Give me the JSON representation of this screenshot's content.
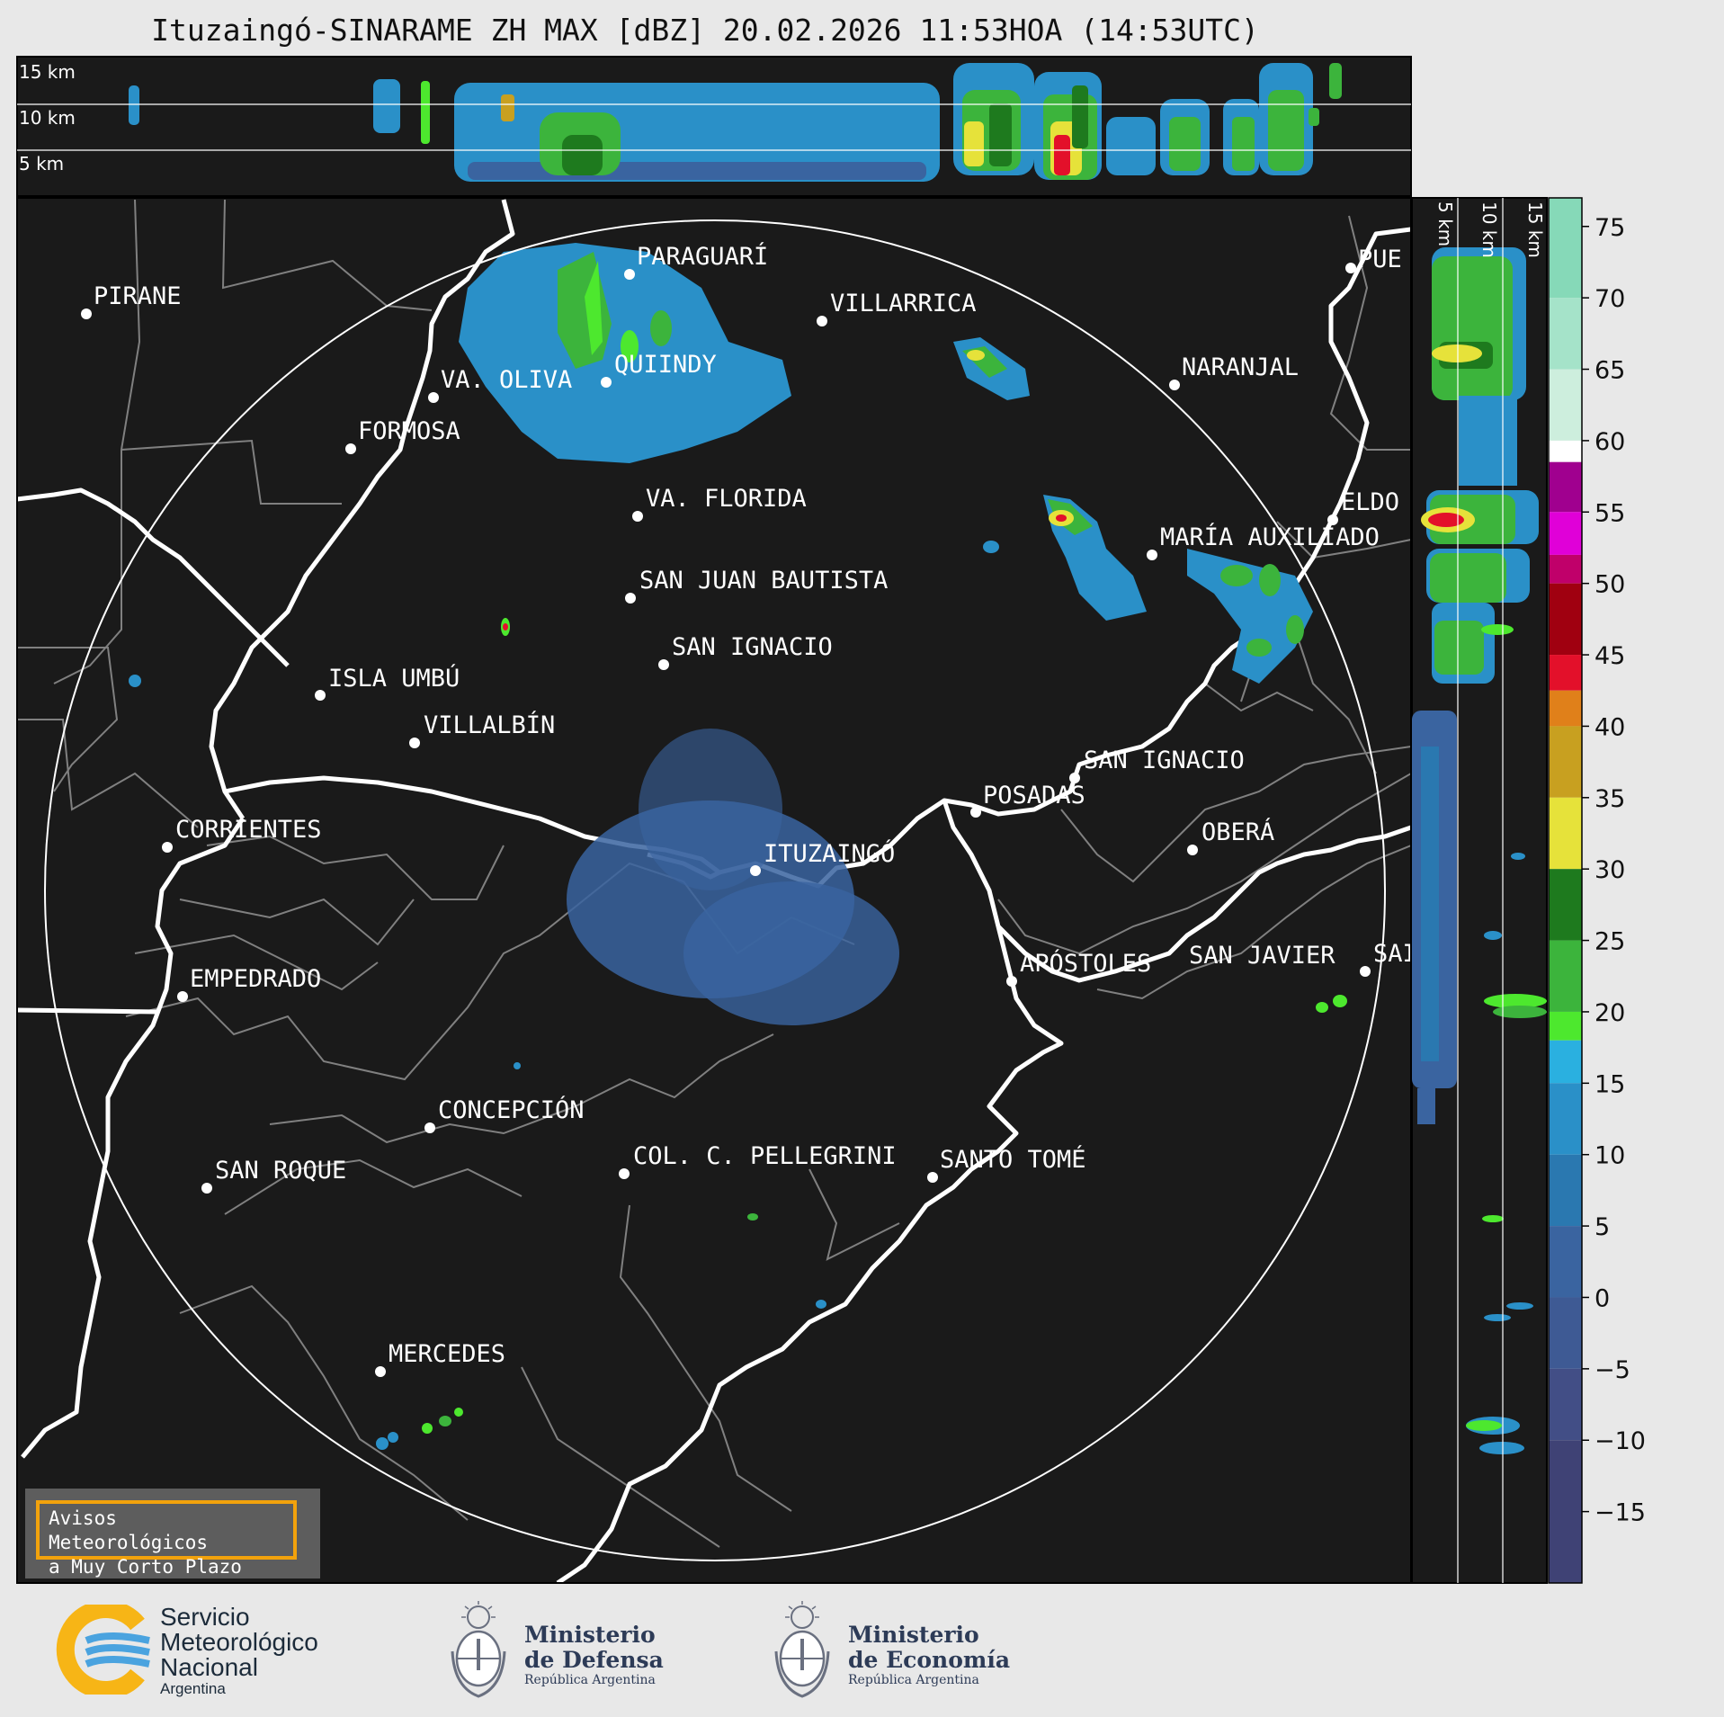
{
  "title": "Ituzaingó-SINARAME ZH MAX [dBZ] 20.02.2026 11:53HOA (14:53UTC)",
  "top_panel": {
    "height_labels": [
      "15 km",
      "10 km",
      "5 km"
    ]
  },
  "side_panel": {
    "height_labels": [
      "5 km",
      "10 km",
      "15 km"
    ]
  },
  "colorbar": {
    "ticks": [
      "75",
      "70",
      "65",
      "60",
      "55",
      "50",
      "45",
      "40",
      "35",
      "30",
      "25",
      "20",
      "15",
      "10",
      "5",
      "0",
      "−5",
      "−10",
      "−15"
    ],
    "range": [
      -20,
      77
    ],
    "segments": [
      {
        "from": 70,
        "to": 77,
        "color": "#86d9b8"
      },
      {
        "from": 65,
        "to": 70,
        "color": "#a5e3c9"
      },
      {
        "from": 60,
        "to": 65,
        "color": "#cdeedd"
      },
      {
        "from": 58.5,
        "to": 60,
        "color": "#ffffff"
      },
      {
        "from": 55,
        "to": 58.5,
        "color": "#a0008f"
      },
      {
        "from": 52,
        "to": 55,
        "color": "#e000d8"
      },
      {
        "from": 50,
        "to": 52,
        "color": "#c0006a"
      },
      {
        "from": 45,
        "to": 50,
        "color": "#a00010"
      },
      {
        "from": 42.5,
        "to": 45,
        "color": "#e3102a"
      },
      {
        "from": 40,
        "to": 42.5,
        "color": "#e0801a"
      },
      {
        "from": 35,
        "to": 40,
        "color": "#c8a020"
      },
      {
        "from": 30,
        "to": 35,
        "color": "#e6e23a"
      },
      {
        "from": 25,
        "to": 30,
        "color": "#1e7a1e"
      },
      {
        "from": 20,
        "to": 25,
        "color": "#3cb43c"
      },
      {
        "from": 18,
        "to": 20,
        "color": "#4de82e"
      },
      {
        "from": 15,
        "to": 18,
        "color": "#2ab0e0"
      },
      {
        "from": 10,
        "to": 15,
        "color": "#2a90c8"
      },
      {
        "from": 5,
        "to": 10,
        "color": "#2a78b0"
      },
      {
        "from": 0,
        "to": 5,
        "color": "#3a64a0"
      },
      {
        "from": -5,
        "to": 0,
        "color": "#3e5a94"
      },
      {
        "from": -10,
        "to": -5,
        "color": "#424e86"
      },
      {
        "from": -20,
        "to": -10,
        "color": "#3f4275"
      }
    ]
  },
  "cities": [
    {
      "name": "PIRANE"
    },
    {
      "name": "PARAGUARÍ"
    },
    {
      "name": "VILLARRICA"
    },
    {
      "name": "QUIINDY"
    },
    {
      "name": "VA. OLIVA"
    },
    {
      "name": "FORMOSA"
    },
    {
      "name": "NARANJAL"
    },
    {
      "name": "PUE"
    },
    {
      "name": "VA. FLORIDA"
    },
    {
      "name": "ELDO"
    },
    {
      "name": "MARÍA AUXILIADO"
    },
    {
      "name": "SAN JUAN BAUTISTA"
    },
    {
      "name": "SAN IGNACIO"
    },
    {
      "name": "ISLA UMBÚ"
    },
    {
      "name": "VILLALBÍN"
    },
    {
      "name": "SAN IGNACIO"
    },
    {
      "name": "POSADAS"
    },
    {
      "name": "CORRIENTES"
    },
    {
      "name": "ITUZAINGÓ"
    },
    {
      "name": "OBERÁ"
    },
    {
      "name": "EMPEDRADO"
    },
    {
      "name": "APÓSTOLES"
    },
    {
      "name": "SAN JAVIER"
    },
    {
      "name": "SAI"
    },
    {
      "name": "CONCEPCIÓN"
    },
    {
      "name": "SAN ROQUE"
    },
    {
      "name": "COL. C. PELLEGRINI"
    },
    {
      "name": "SANTO TOMÉ"
    },
    {
      "name": "MERCEDES"
    }
  ],
  "banner": {
    "line1": "Avisos Meteorológicos",
    "line2": "a Muy Corto Plazo"
  },
  "footer": {
    "smn": {
      "line1": "Servicio",
      "line2": "Meteorológico",
      "line3": "Nacional",
      "line4": "Argentina"
    },
    "defensa": {
      "line1": "Ministerio",
      "line2": "de Defensa",
      "line3": "República Argentina"
    },
    "economia": {
      "line1": "Ministerio",
      "line2": "de Economía",
      "line3": "República Argentina"
    }
  },
  "colors": {
    "background": "#1a1a1a",
    "river": "#ffffff",
    "border": "#808080",
    "panel_frame": "#000000",
    "banner_border": "#f2a20c"
  }
}
